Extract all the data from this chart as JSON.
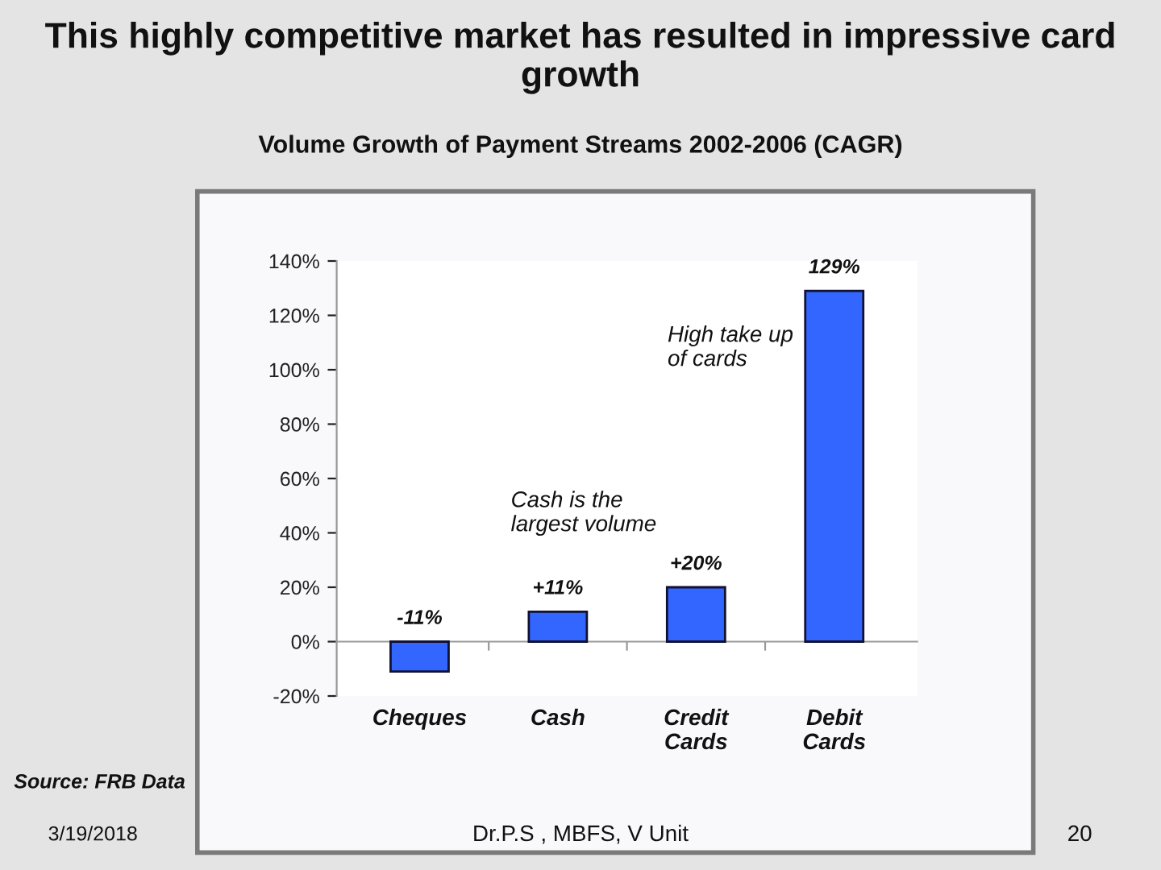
{
  "chart_data": {
    "type": "bar",
    "title": "This highly competitive market has resulted in impressive card growth",
    "subtitle": "Volume Growth of Payment Streams 2002-2006 (CAGR)",
    "categories": [
      "Cheques",
      "Cash",
      "Credit\nCards",
      "Debit\nCards"
    ],
    "values": [
      -11,
      11,
      20,
      129
    ],
    "value_labels": [
      "-11%",
      "+11%",
      "+20%",
      "129%"
    ],
    "color": "#3366ff",
    "ylim": [
      -20,
      140
    ],
    "yticks": [
      {
        "value": -20,
        "label": "-20%"
      },
      {
        "value": 0,
        "label": "0%"
      },
      {
        "value": 20,
        "label": "20%"
      },
      {
        "value": 40,
        "label": "40%"
      },
      {
        "value": 60,
        "label": "60%"
      },
      {
        "value": 80,
        "label": "80%"
      },
      {
        "value": 100,
        "label": "100%"
      },
      {
        "value": 120,
        "label": "120%"
      },
      {
        "value": 140,
        "label": "140%"
      }
    ],
    "annotations": [
      "Cash is the\nlargest volume",
      "High take up\nof cards",
      "Source: FRB Data",
      "3/19/2018",
      "Dr.P.S , MBFS, V Unit",
      "20"
    ]
  }
}
